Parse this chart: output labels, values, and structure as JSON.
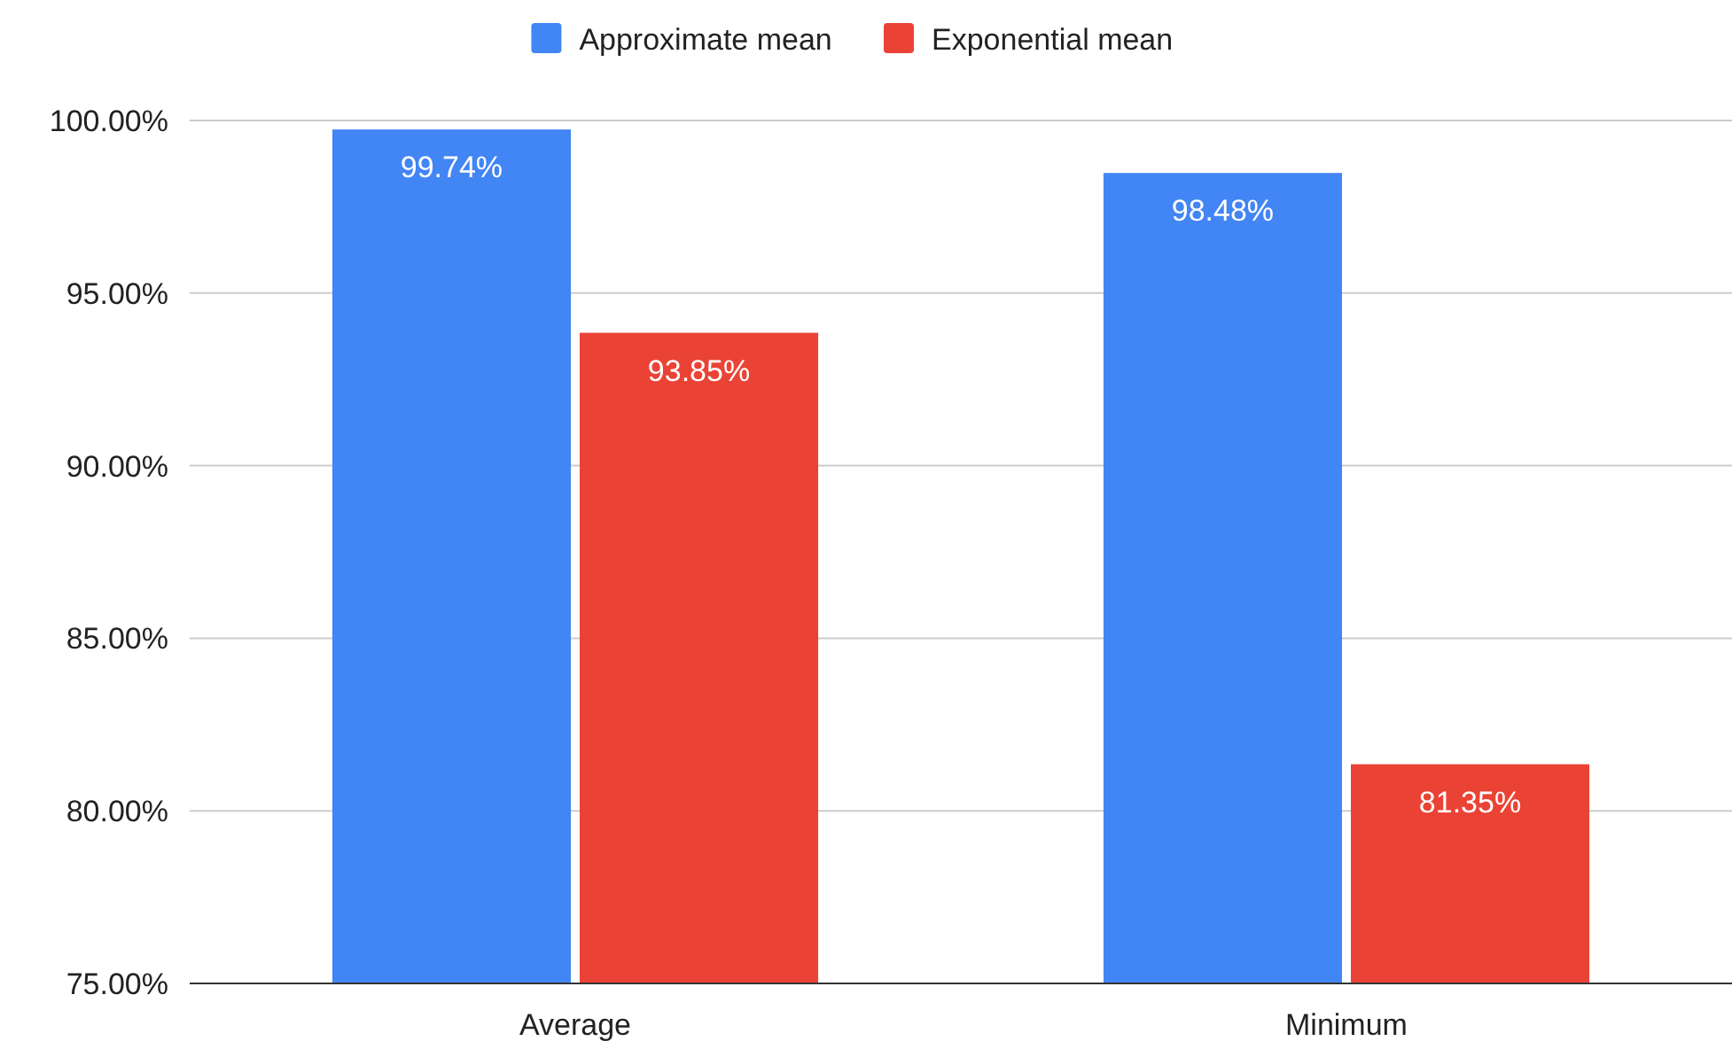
{
  "chart_data": {
    "type": "bar",
    "categories": [
      "Average",
      "Minimum"
    ],
    "series": [
      {
        "name": "Approximate mean",
        "color": "#4285f4",
        "values": [
          99.74,
          98.48
        ],
        "value_labels": [
          "99.74%",
          "98.48%"
        ]
      },
      {
        "name": "Exponential mean",
        "color": "#ea4335",
        "values": [
          93.85,
          81.35
        ],
        "value_labels": [
          "93.85%",
          "81.35%"
        ]
      }
    ],
    "ylim": [
      75,
      100
    ],
    "yticks": [
      {
        "value": 75,
        "label": "75.00%"
      },
      {
        "value": 80,
        "label": "80.00%"
      },
      {
        "value": 85,
        "label": "85.00%"
      },
      {
        "value": 90,
        "label": "90.00%"
      },
      {
        "value": 95,
        "label": "95.00%"
      },
      {
        "value": 100,
        "label": "100.00%"
      }
    ],
    "grid": "y",
    "legend": "top"
  }
}
